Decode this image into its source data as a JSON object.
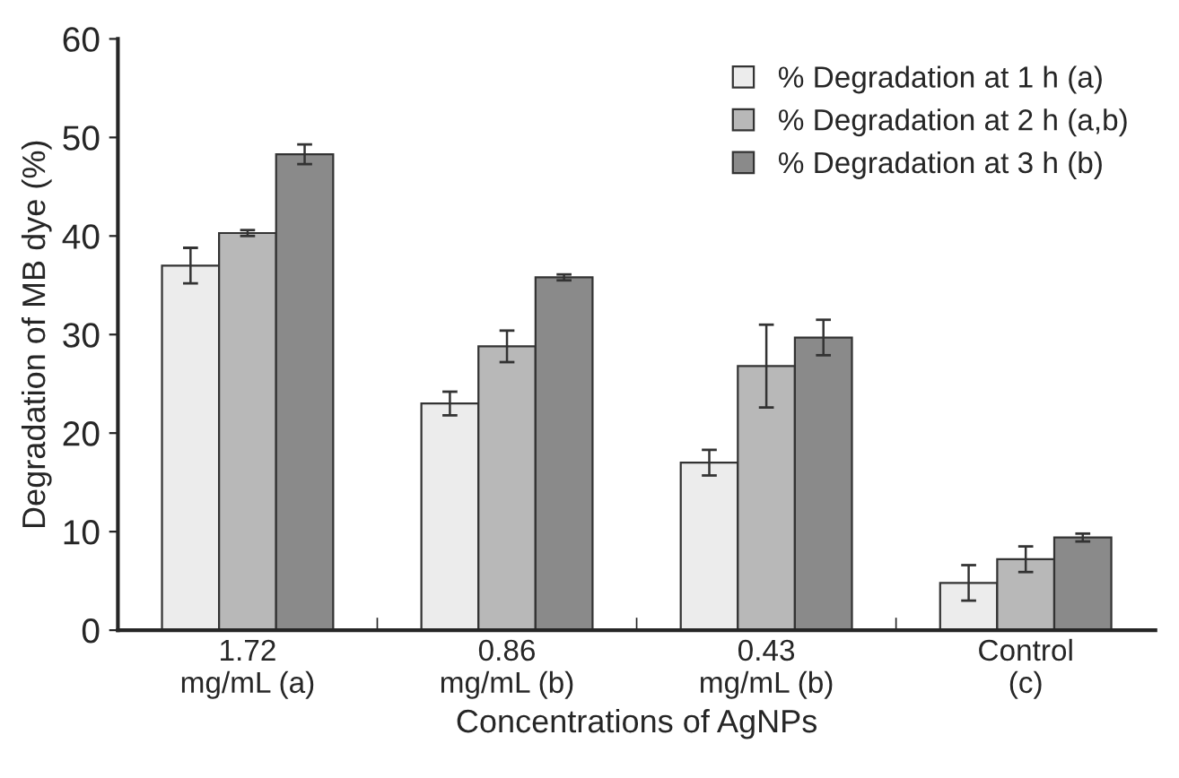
{
  "chart_data": {
    "type": "bar",
    "xlabel": "Concentrations of AgNPs",
    "ylabel": "Degradation of MB dye (%)",
    "categories": [
      "1.72\nmg/mL (a)",
      "0.86\nmg/mL (b)",
      "0.43\nmg/mL (b)",
      "Control\n(c)"
    ],
    "series": [
      {
        "name": "% Degradation at 1 h (a)",
        "color": "#ececec",
        "values": [
          37,
          23,
          17,
          4.8
        ],
        "errors": [
          1.8,
          1.2,
          1.3,
          1.8
        ]
      },
      {
        "name": "% Degradation at 2 h (a,b)",
        "color": "#b8b8b8",
        "values": [
          40.3,
          28.8,
          26.8,
          7.2
        ],
        "errors": [
          0.3,
          1.6,
          4.2,
          1.3
        ]
      },
      {
        "name": "% Degradation at 3 h (b)",
        "color": "#8a8a8a",
        "values": [
          48.3,
          35.8,
          29.7,
          9.4
        ],
        "errors": [
          1.0,
          0.3,
          1.8,
          0.4
        ]
      }
    ],
    "ylim": [
      0,
      60
    ],
    "yticks": [
      0,
      10,
      20,
      30,
      40,
      50,
      60
    ],
    "grid": false,
    "legend": "top right"
  }
}
